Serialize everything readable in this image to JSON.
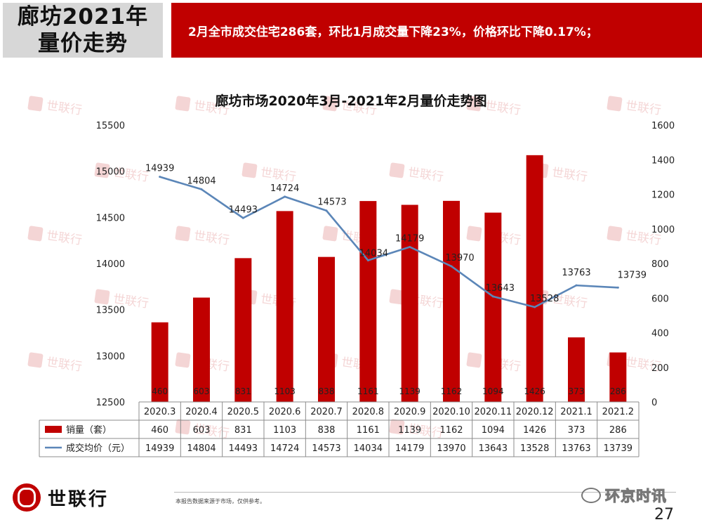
{
  "header": {
    "title_line1": "廊坊2021年",
    "title_line2": "量价走势",
    "banner_text": "2月全市成交住宅286套，环比1月成交量下降23%，价格环比下降0.17%；"
  },
  "colors": {
    "accent_red": "#c00000",
    "line_blue": "#5b86b8",
    "title_box_gray": "#d7d7d7"
  },
  "chart_data": {
    "type": "bar",
    "title": "廊坊市场2020年3月-2021年2月量价走势图",
    "categories": [
      "2020.3",
      "2020.4",
      "2020.5",
      "2020.6",
      "2020.7",
      "2020.8",
      "2020.9",
      "2020.10",
      "2020.11",
      "2020.12",
      "2021.1",
      "2021.2"
    ],
    "series": [
      {
        "name": "销量（套）",
        "type": "bar",
        "axis": "right",
        "color": "#c00000",
        "values": [
          460,
          603,
          831,
          1103,
          838,
          1161,
          1139,
          1162,
          1094,
          1426,
          373,
          286
        ]
      },
      {
        "name": "成交均价（元）",
        "type": "line",
        "axis": "left",
        "color": "#5b86b8",
        "values": [
          14939,
          14804,
          14493,
          14724,
          14573,
          14034,
          14179,
          13970,
          13643,
          13528,
          13763,
          13739
        ]
      }
    ],
    "y_left": {
      "min": 12500,
      "max": 15500,
      "ticks": [
        12500,
        13000,
        13500,
        14000,
        14500,
        15000,
        15500
      ]
    },
    "y_right": {
      "min": 0,
      "max": 1600,
      "ticks": [
        0,
        200,
        400,
        600,
        800,
        1000,
        1200,
        1400,
        1600
      ]
    },
    "legend_placement": "bottom data table"
  },
  "watermark": {
    "text": "世联行"
  },
  "footer": {
    "note": "本报告数据来源于市场，仅供参考。",
    "logo_text": "世联行",
    "wechat_text": "环京时讯",
    "page_number": "27"
  }
}
